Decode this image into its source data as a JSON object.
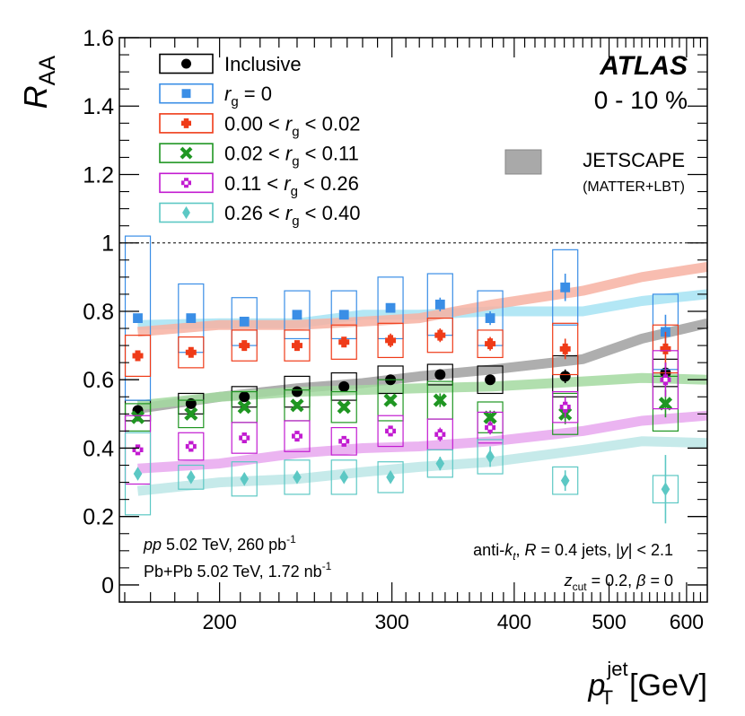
{
  "chart_data": {
    "type": "scatter",
    "title": "",
    "experiment": "ATLAS",
    "centrality": "0 - 10 %",
    "xlabel_main": "p",
    "xlabel_sup": "jet",
    "xlabel_sub": "T",
    "xlabel_unit": "[GeV]",
    "ylabel_main": "R",
    "ylabel_sub": "AA",
    "x_scale": "log",
    "xlim": [
      158,
      630
    ],
    "ylim": [
      -0.05,
      1.6
    ],
    "x_ticks": [
      200,
      300,
      400,
      500,
      600
    ],
    "x_tick_labels": [
      "200",
      "300",
      "400",
      "500",
      "600"
    ],
    "y_ticks": [
      0,
      0.2,
      0.4,
      0.6,
      0.8,
      1,
      1.2,
      1.4,
      1.6
    ],
    "y_tick_labels": [
      "0",
      "0.2",
      "0.4",
      "0.6",
      "0.8",
      "1",
      "1.2",
      "1.4",
      "1.6"
    ],
    "reference_line": 1,
    "x": [
      165,
      187,
      212,
      240,
      268,
      299,
      336,
      378,
      451,
      571
    ],
    "series": [
      {
        "name": "Inclusive",
        "label_parts": [
          "Inclusive"
        ],
        "marker": "circle",
        "color": "#000000",
        "box_color": "#000000",
        "values": [
          0.51,
          0.53,
          0.55,
          0.565,
          0.58,
          0.6,
          0.615,
          0.6,
          0.61,
          0.62
        ],
        "sys": [
          0.03,
          0.03,
          0.03,
          0.045,
          0.04,
          0.04,
          0.03,
          0.04,
          0.06,
          0.04
        ],
        "stat": [
          0.01,
          0.01,
          0.01,
          0.01,
          0.01,
          0.01,
          0.01,
          0.01,
          0.02,
          0.03
        ]
      },
      {
        "name": "r_g = 0",
        "label_parts": [
          "r",
          "g",
          " = 0"
        ],
        "marker": "square",
        "color": "#3a8ee6",
        "box_color": "#3a8ee6",
        "values": [
          0.78,
          0.78,
          0.77,
          0.79,
          0.79,
          0.81,
          0.82,
          0.78,
          0.87,
          0.74
        ],
        "sys": [
          0.24,
          0.1,
          0.07,
          0.07,
          0.07,
          0.09,
          0.09,
          0.08,
          0.11,
          0.11
        ],
        "stat": [
          0.01,
          0.01,
          0.01,
          0.01,
          0.01,
          0.01,
          0.02,
          0.02,
          0.04,
          0.05
        ]
      },
      {
        "name": "0.00 < r_g < 0.02",
        "label_parts": [
          "0.00 < r",
          "g",
          " < 0.02"
        ],
        "marker": "cross",
        "color": "#ef3b18",
        "box_color": "#ef3b18",
        "values": [
          0.67,
          0.68,
          0.7,
          0.7,
          0.71,
          0.715,
          0.73,
          0.705,
          0.69,
          0.69
        ],
        "sys": [
          0.06,
          0.045,
          0.045,
          0.045,
          0.05,
          0.05,
          0.05,
          0.04,
          0.075,
          0.07
        ],
        "stat": [
          0.01,
          0.01,
          0.01,
          0.01,
          0.01,
          0.02,
          0.02,
          0.02,
          0.03,
          0.05
        ]
      },
      {
        "name": "0.02 < r_g < 0.11",
        "label_parts": [
          "0.02 < r",
          "g",
          " < 0.11"
        ],
        "marker": "x",
        "color": "#1f9622",
        "box_color": "#1f9622",
        "values": [
          0.49,
          0.5,
          0.52,
          0.525,
          0.52,
          0.54,
          0.54,
          0.49,
          0.5,
          0.53
        ],
        "sys": [
          0.04,
          0.04,
          0.045,
          0.045,
          0.045,
          0.06,
          0.055,
          0.045,
          0.06,
          0.08
        ],
        "stat": [
          0.01,
          0.01,
          0.01,
          0.01,
          0.01,
          0.01,
          0.02,
          0.02,
          0.03,
          0.04
        ]
      },
      {
        "name": "0.11 < r_g < 0.26",
        "label_parts": [
          "0.11 < r",
          "g",
          " < 0.26"
        ],
        "marker": "open-cross",
        "color": "#c21bd1",
        "box_color": "#c21bd1",
        "values": [
          0.395,
          0.405,
          0.43,
          0.435,
          0.42,
          0.45,
          0.44,
          0.46,
          0.52,
          0.6
        ],
        "sys": [
          0.1,
          0.04,
          0.045,
          0.045,
          0.04,
          0.045,
          0.045,
          0.045,
          0.045,
          0.085
        ],
        "stat": [
          0.01,
          0.01,
          0.01,
          0.01,
          0.01,
          0.01,
          0.02,
          0.02,
          0.03,
          0.05
        ]
      },
      {
        "name": "0.26 < r_g < 0.40",
        "label_parts": [
          "0.26 < r",
          "g",
          " < 0.40"
        ],
        "marker": "diamond",
        "color": "#5cc8c4",
        "box_color": "#5cc8c4",
        "values": [
          0.325,
          0.315,
          0.31,
          0.315,
          0.315,
          0.315,
          0.355,
          0.375,
          0.305,
          0.28
        ],
        "sys": [
          0.12,
          0.035,
          0.05,
          0.05,
          0.05,
          0.045,
          0.04,
          0.05,
          0.04,
          0.04
        ],
        "stat": [
          0.01,
          0.01,
          0.01,
          0.01,
          0.01,
          0.01,
          0.02,
          0.03,
          0.03,
          0.1
        ]
      }
    ],
    "theory": {
      "name": "JETSCAPE",
      "subname": "(MATTER+LBT)",
      "legend_color": "#a9a9a9",
      "x": [
        165,
        200,
        240,
        280,
        320,
        380,
        470,
        540,
        630
      ],
      "curves": [
        {
          "name": "Inclusive",
          "color": "#a0a0a0",
          "values": [
            0.515,
            0.55,
            0.575,
            0.59,
            0.61,
            0.63,
            0.66,
            0.72,
            0.765
          ]
        },
        {
          "name": "r_g = 0",
          "color": "#a6e3f3",
          "values": [
            0.76,
            0.765,
            0.765,
            0.79,
            0.79,
            0.8,
            0.8,
            0.83,
            0.85
          ]
        },
        {
          "name": "0.00 < r_g < 0.02",
          "color": "#f7b2a2",
          "values": [
            0.74,
            0.76,
            0.76,
            0.77,
            0.78,
            0.82,
            0.86,
            0.9,
            0.93
          ]
        },
        {
          "name": "0.02 < r_g < 0.11",
          "color": "#a3d9a0",
          "values": [
            0.525,
            0.55,
            0.565,
            0.57,
            0.575,
            0.58,
            0.595,
            0.605,
            0.6
          ]
        },
        {
          "name": "0.11 < r_g < 0.26",
          "color": "#e7a7ee",
          "values": [
            0.34,
            0.355,
            0.385,
            0.4,
            0.405,
            0.42,
            0.45,
            0.48,
            0.495
          ]
        },
        {
          "name": "0.26 < r_g < 0.40",
          "color": "#bce6e6",
          "values": [
            0.275,
            0.3,
            0.31,
            0.33,
            0.345,
            0.36,
            0.395,
            0.42,
            0.415
          ]
        }
      ]
    },
    "annotations": {
      "pp_italic": "pp",
      "pp_text": " 5.02 TeV, 260 pb",
      "pp_sup": "-1",
      "pbpb_text": "Pb+Pb 5.02 TeV, 1.72 nb",
      "pbpb_sup": "-1",
      "jets_prefix": "anti-",
      "jets_k": "k",
      "jets_t": "t",
      "jets_R": "R",
      "jets_mid": " = 0.4 jets, |",
      "jets_y": "y",
      "jets_suffix": "| < 2.1",
      "z_main": "z",
      "z_sub": "cut",
      "z_mid": " = 0.2, ",
      "beta": "β",
      "beta_val": " = 0"
    }
  }
}
